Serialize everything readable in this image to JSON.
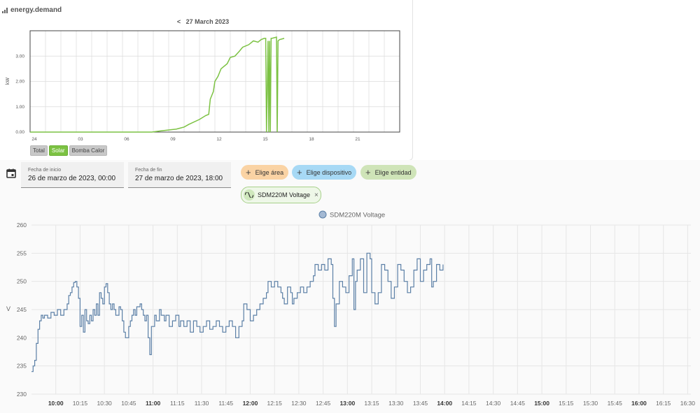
{
  "energy_card": {
    "title": "energy.demand",
    "date_prev": "<",
    "date_label": "27 March 2023",
    "legend_buttons": [
      {
        "label": "Total",
        "active": false
      },
      {
        "label": "Solar",
        "active": true
      },
      {
        "label": "Bomba Calor",
        "active": false
      }
    ]
  },
  "controls": {
    "start_label": "Fecha de inicio",
    "start_value": "26 de marzo de 2023, 00:00",
    "end_label": "Fecha de fin",
    "end_value": "27 de marzo de 2023, 18:00",
    "chips": [
      {
        "label": "Elige área",
        "bg": "#fad3a4"
      },
      {
        "label": "Elige dispositivo",
        "bg": "#a7d9f5"
      },
      {
        "label": "Elige entidad",
        "bg": "#cfe4b8"
      }
    ],
    "entity_chip": "SDM220M Voltage",
    "entity_close": "×"
  },
  "chart_data": [
    {
      "type": "line",
      "title": "",
      "ylabel": "kW",
      "series": [
        {
          "name": "Solar",
          "color": "#7cc243"
        }
      ],
      "x_ticks": [
        "24",
        "03",
        "06",
        "09",
        "12",
        "15",
        "18",
        "21"
      ],
      "y_ticks": [
        "0.00",
        "1.00",
        "2.00",
        "3.00"
      ],
      "ylim": [
        0,
        4
      ],
      "xlim_hours": [
        0,
        24
      ],
      "points": [
        [
          0,
          0
        ],
        [
          7.9,
          0
        ],
        [
          8.5,
          0.05
        ],
        [
          9.5,
          0.12
        ],
        [
          10,
          0.2
        ],
        [
          10.3,
          0.3
        ],
        [
          11,
          0.5
        ],
        [
          11.4,
          0.65
        ],
        [
          11.6,
          0.7
        ],
        [
          11.7,
          1.3
        ],
        [
          11.9,
          1.6
        ],
        [
          12,
          2.0
        ],
        [
          12.2,
          2.2
        ],
        [
          12.4,
          2.5
        ],
        [
          12.8,
          2.7
        ],
        [
          13.0,
          2.95
        ],
        [
          13.3,
          3.0
        ],
        [
          13.6,
          3.2
        ],
        [
          13.8,
          3.35
        ],
        [
          14.2,
          3.45
        ],
        [
          14.5,
          3.6
        ],
        [
          14.8,
          3.55
        ],
        [
          15.0,
          3.65
        ],
        [
          15.2,
          3.7
        ],
        [
          15.3,
          3.7
        ],
        [
          15.35,
          0.0
        ],
        [
          15.4,
          1.6
        ],
        [
          15.45,
          3.6
        ],
        [
          15.5,
          0.0
        ],
        [
          15.55,
          3.6
        ],
        [
          15.6,
          0.0
        ],
        [
          15.65,
          3.7
        ],
        [
          15.7,
          3.7
        ],
        [
          16.0,
          3.75
        ],
        [
          16.05,
          0.0
        ],
        [
          16.1,
          3.6
        ],
        [
          16.2,
          3.65
        ],
        [
          16.5,
          3.7
        ]
      ]
    },
    {
      "type": "line",
      "title": "",
      "ylabel": "V",
      "series": [
        {
          "name": "SDM220M Voltage",
          "color": "#5b7fa6"
        }
      ],
      "y_ticks": [
        230,
        235,
        240,
        245,
        250,
        255,
        260
      ],
      "ylim": [
        230,
        260
      ],
      "xlim_minutes": [
        585,
        992
      ],
      "x_ticks": [
        {
          "label": "10:00",
          "bold": true
        },
        {
          "label": "10:15",
          "bold": false
        },
        {
          "label": "10:30",
          "bold": false
        },
        {
          "label": "10:45",
          "bold": false
        },
        {
          "label": "11:00",
          "bold": true
        },
        {
          "label": "11:15",
          "bold": false
        },
        {
          "label": "11:30",
          "bold": false
        },
        {
          "label": "11:45",
          "bold": false
        },
        {
          "label": "12:00",
          "bold": true
        },
        {
          "label": "12:15",
          "bold": false
        },
        {
          "label": "12:30",
          "bold": false
        },
        {
          "label": "12:45",
          "bold": false
        },
        {
          "label": "13:00",
          "bold": true
        },
        {
          "label": "13:15",
          "bold": false
        },
        {
          "label": "13:30",
          "bold": false
        },
        {
          "label": "13:45",
          "bold": false
        },
        {
          "label": "14:00",
          "bold": true
        },
        {
          "label": "14:15",
          "bold": false
        },
        {
          "label": "14:30",
          "bold": false
        },
        {
          "label": "14:45",
          "bold": false
        },
        {
          "label": "15:00",
          "bold": true
        },
        {
          "label": "15:15",
          "bold": false
        },
        {
          "label": "15:30",
          "bold": false
        },
        {
          "label": "15:45",
          "bold": false
        },
        {
          "label": "16:00",
          "bold": true
        },
        {
          "label": "16:15",
          "bold": false
        },
        {
          "label": "16:30",
          "bold": false
        }
      ],
      "points": [
        [
          585,
          234
        ],
        [
          586,
          235
        ],
        [
          587,
          236
        ],
        [
          588,
          239
        ],
        [
          589,
          241.5
        ],
        [
          590,
          243
        ],
        [
          591,
          244
        ],
        [
          592,
          243.5
        ],
        [
          593,
          244
        ],
        [
          595,
          243.5
        ],
        [
          597,
          244.5
        ],
        [
          599,
          244
        ],
        [
          601,
          245
        ],
        [
          603,
          244
        ],
        [
          605,
          245
        ],
        [
          607,
          246
        ],
        [
          608,
          247.5
        ],
        [
          609,
          248
        ],
        [
          610,
          249
        ],
        [
          611,
          249.8
        ],
        [
          612,
          250
        ],
        [
          613,
          249
        ],
        [
          614,
          247
        ],
        [
          615,
          242
        ],
        [
          616,
          244
        ],
        [
          617,
          241
        ],
        [
          618,
          245
        ],
        [
          619,
          243
        ],
        [
          620,
          242.5
        ],
        [
          621,
          244
        ],
        [
          622,
          243
        ],
        [
          623,
          245
        ],
        [
          624,
          244
        ],
        [
          625,
          246
        ],
        [
          626,
          244
        ],
        [
          627,
          248
        ],
        [
          628,
          247
        ],
        [
          629,
          246
        ],
        [
          630,
          249
        ],
        [
          631,
          249.6
        ],
        [
          632,
          248
        ],
        [
          633,
          246
        ],
        [
          634,
          245
        ],
        [
          635,
          246
        ],
        [
          636,
          245
        ],
        [
          637,
          244
        ],
        [
          639,
          245.5
        ],
        [
          640,
          245
        ],
        [
          641,
          243
        ],
        [
          642,
          241
        ],
        [
          643,
          240
        ],
        [
          645,
          242
        ],
        [
          646,
          243
        ],
        [
          647,
          244
        ],
        [
          648,
          245
        ],
        [
          649,
          244
        ],
        [
          650,
          245.5
        ],
        [
          652,
          246
        ],
        [
          653,
          245
        ],
        [
          654,
          244
        ],
        [
          655,
          243
        ],
        [
          656,
          244
        ],
        [
          657,
          240
        ],
        [
          658,
          237
        ],
        [
          659,
          242
        ],
        [
          661,
          244
        ],
        [
          662,
          243
        ],
        [
          664,
          245
        ],
        [
          665,
          244
        ],
        [
          667,
          243
        ],
        [
          668,
          244
        ],
        [
          670,
          242
        ],
        [
          672,
          243
        ],
        [
          674,
          244
        ],
        [
          676,
          242
        ],
        [
          677,
          243
        ],
        [
          679,
          242
        ],
        [
          681,
          243
        ],
        [
          683,
          241
        ],
        [
          685,
          243
        ],
        [
          687,
          242
        ],
        [
          689,
          241
        ],
        [
          691,
          242
        ],
        [
          693,
          243
        ],
        [
          695,
          241.5
        ],
        [
          697,
          242
        ],
        [
          699,
          243
        ],
        [
          701,
          242
        ],
        [
          703,
          241
        ],
        [
          705,
          242
        ],
        [
          707,
          243
        ],
        [
          709,
          242
        ],
        [
          711,
          240
        ],
        [
          713,
          242
        ],
        [
          715,
          243
        ],
        [
          716,
          246
        ],
        [
          718,
          245
        ],
        [
          720,
          243
        ],
        [
          722,
          244
        ],
        [
          724,
          245
        ],
        [
          726,
          246
        ],
        [
          728,
          247
        ],
        [
          730,
          248
        ],
        [
          731,
          250
        ],
        [
          733,
          249
        ],
        [
          735,
          250
        ],
        [
          737,
          249
        ],
        [
          739,
          248
        ],
        [
          740,
          247
        ],
        [
          741,
          246
        ],
        [
          743,
          249
        ],
        [
          745,
          248
        ],
        [
          746,
          246
        ],
        [
          747,
          247
        ],
        [
          749,
          248
        ],
        [
          751,
          249
        ],
        [
          753,
          248
        ],
        [
          755,
          249
        ],
        [
          757,
          250
        ],
        [
          759,
          251
        ],
        [
          760,
          253
        ],
        [
          762,
          252
        ],
        [
          764,
          253
        ],
        [
          766,
          252
        ],
        [
          768,
          254
        ],
        [
          770,
          253
        ],
        [
          771,
          247
        ],
        [
          772,
          242
        ],
        [
          773,
          246
        ],
        [
          775,
          250
        ],
        [
          777,
          249
        ],
        [
          779,
          248
        ],
        [
          781,
          251
        ],
        [
          783,
          254
        ],
        [
          784,
          245
        ],
        [
          785,
          250
        ],
        [
          786,
          252
        ],
        [
          788,
          254
        ],
        [
          790,
          248
        ],
        [
          792,
          255
        ],
        [
          794,
          254
        ],
        [
          795,
          248
        ],
        [
          797,
          246
        ],
        [
          799,
          248
        ],
        [
          801,
          253
        ],
        [
          803,
          252
        ],
        [
          805,
          250
        ],
        [
          807,
          247
        ],
        [
          809,
          249
        ],
        [
          811,
          253
        ],
        [
          813,
          252
        ],
        [
          815,
          250
        ],
        [
          817,
          248
        ],
        [
          819,
          249
        ],
        [
          821,
          252
        ],
        [
          823,
          254
        ],
        [
          825,
          250
        ],
        [
          827,
          252
        ],
        [
          829,
          253
        ],
        [
          831,
          254
        ],
        [
          832,
          249
        ],
        [
          833,
          250
        ],
        [
          835,
          253
        ],
        [
          837,
          252
        ],
        [
          839,
          253
        ]
      ]
    }
  ],
  "colors": {
    "solar": "#7cc243",
    "voltage_line": "#5b7fa6",
    "voltage_legend_fill": "#a4b9d3"
  }
}
